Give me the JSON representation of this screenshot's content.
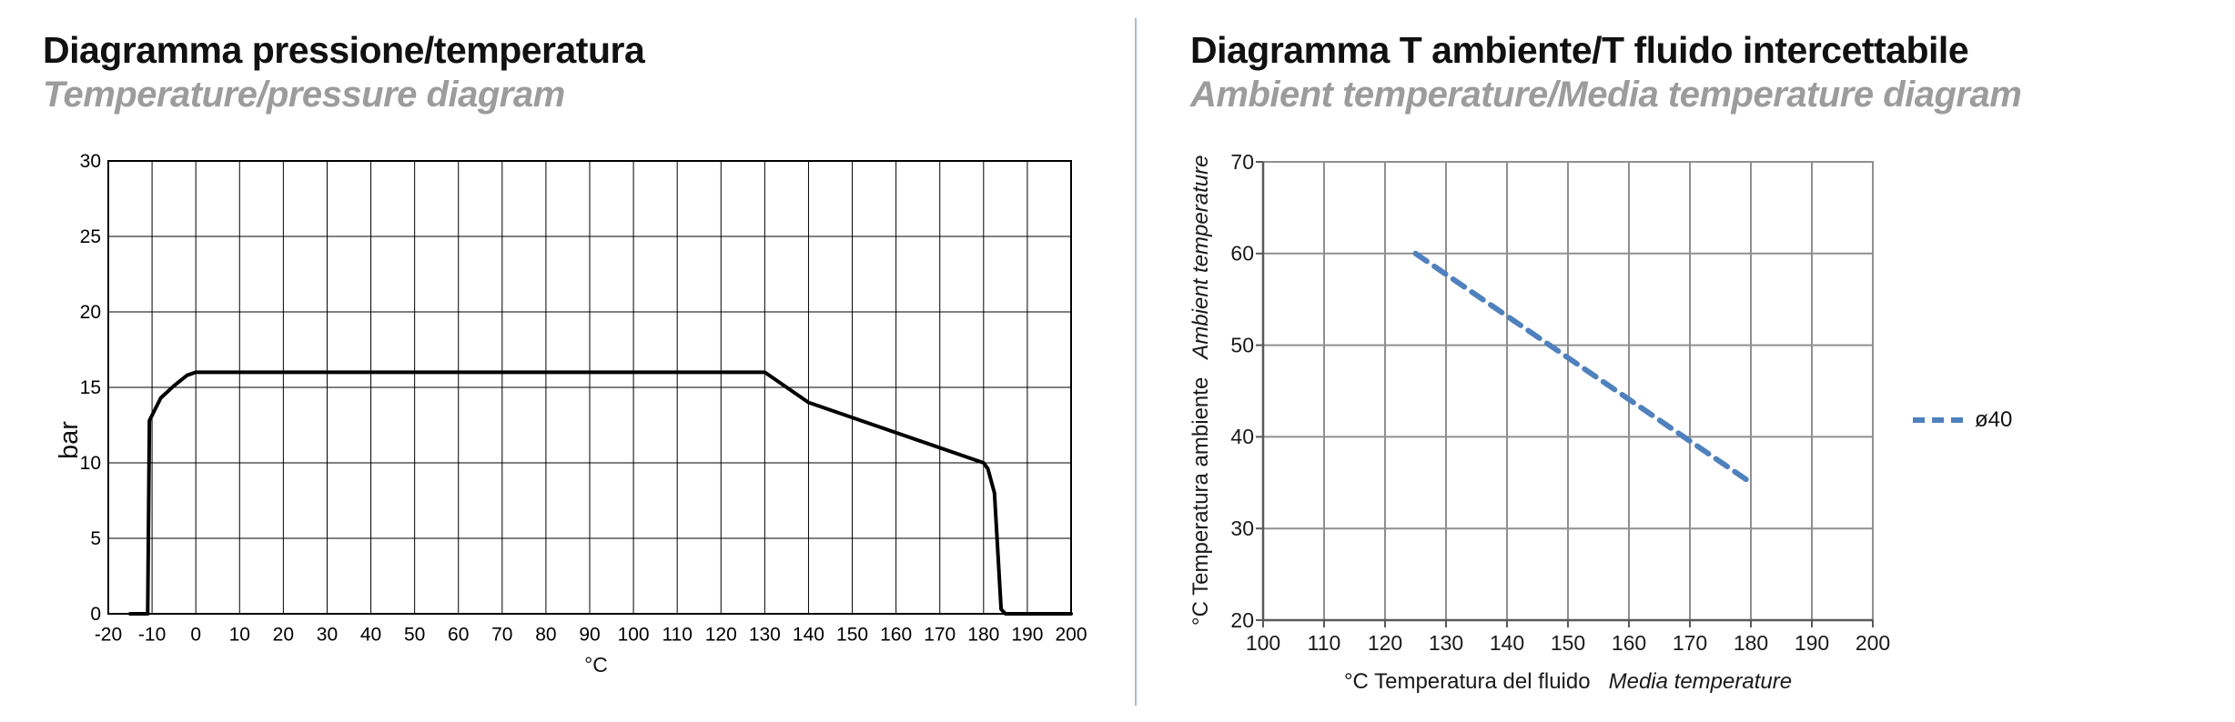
{
  "page": {
    "divider_color": "#a9bccd",
    "background": "#ffffff"
  },
  "chart1": {
    "title": "Diagramma pressione/temperatura",
    "subtitle": "Temperature/pressure diagram",
    "ylabel": "bar",
    "xlabel": "°C"
  },
  "chart2": {
    "title": "Diagramma T ambiente/T fluido intercettabile",
    "subtitle": "Ambient temperature/Media temperature diagram",
    "ylabel_main": "°C  Temperatura ambiente",
    "ylabel_italic": "Ambient temperature",
    "xlabel_main": "°C  Temperatura del fluido",
    "xlabel_italic": "Media temperature",
    "legend_label": "ø40",
    "accent_color": "#4f81bd"
  },
  "chart_data": [
    {
      "type": "line",
      "title": "Diagramma pressione/temperatura",
      "subtitle": "Temperature/pressure diagram",
      "xlabel": "°C",
      "ylabel": "bar",
      "xlim": [
        -20,
        200
      ],
      "ylim": [
        0,
        30
      ],
      "xtick_step": 10,
      "ytick_step": 5,
      "grid": true,
      "legend_position": "none",
      "series": [
        {
          "name": "max-pressure-vs-temperature",
          "color": "#000000",
          "width": 4,
          "dash": null,
          "points": [
            [
              -15,
              0
            ],
            [
              -11,
              0
            ],
            [
              -10.6,
              12.8
            ],
            [
              -8,
              14.3
            ],
            [
              -5,
              15.1
            ],
            [
              -2,
              15.8
            ],
            [
              0,
              16
            ],
            [
              130,
              16
            ],
            [
              140,
              14
            ],
            [
              180,
              10
            ],
            [
              181,
              9.6
            ],
            [
              182.5,
              8
            ],
            [
              184,
              0.3
            ],
            [
              185,
              0
            ],
            [
              200,
              0
            ]
          ]
        }
      ]
    },
    {
      "type": "line",
      "title": "Diagramma T ambiente/T fluido intercettabile",
      "subtitle": "Ambient temperature/Media temperature diagram",
      "xlabel": "°C Temperatura del fluido (Media temperature)",
      "ylabel": "°C Temperatura ambiente (Ambient temperature)",
      "xlim": [
        100,
        200
      ],
      "ylim": [
        20,
        70
      ],
      "xtick_step": 10,
      "ytick_step": 10,
      "grid": true,
      "legend_position": "right",
      "legend": [
        {
          "label": "ø40",
          "color": "#4f81bd",
          "style": "dashed"
        }
      ],
      "series": [
        {
          "name": "diameter-40",
          "color": "#4f81bd",
          "width": 6,
          "dash": [
            15,
            10
          ],
          "points": [
            [
              125,
              60
            ],
            [
              180,
              35
            ]
          ]
        }
      ]
    }
  ]
}
